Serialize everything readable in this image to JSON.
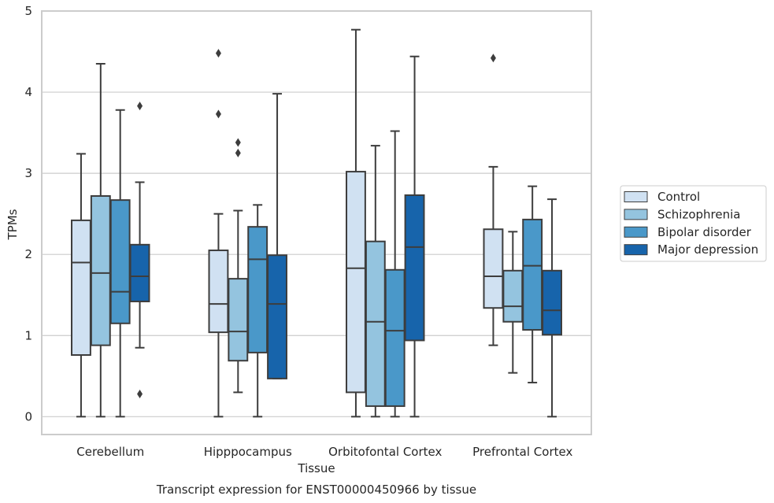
{
  "chart_data": {
    "type": "box",
    "xlabel": "Tissue",
    "ylabel": "TPMs",
    "caption": "Transcript expression for ENST00000450966 by tissue",
    "ylim": [
      -0.22,
      5.0
    ],
    "yticks": [
      "0",
      "1",
      "2",
      "3",
      "4",
      "5"
    ],
    "grid": true,
    "legend_position": "right",
    "categories": [
      "Cerebellum",
      "Hipppocampus",
      "Orbitofontal Cortex",
      "Prefrontal Cortex"
    ],
    "series": [
      {
        "name": "Control",
        "color": "#d0e1f2",
        "boxes": [
          {
            "whislo": 0.0,
            "q1": 0.76,
            "med": 1.9,
            "q3": 2.42,
            "whishi": 3.24,
            "fliers": []
          },
          {
            "whislo": 0.0,
            "q1": 1.04,
            "med": 1.39,
            "q3": 2.05,
            "whishi": 2.5,
            "fliers": [
              4.48,
              3.73
            ]
          },
          {
            "whislo": 0.0,
            "q1": 0.3,
            "med": 1.83,
            "q3": 3.02,
            "whishi": 4.77,
            "fliers": []
          },
          {
            "whislo": 0.88,
            "q1": 1.34,
            "med": 1.73,
            "q3": 2.31,
            "whishi": 3.08,
            "fliers": [
              4.42
            ]
          }
        ]
      },
      {
        "name": "Schizophrenia",
        "color": "#94c4df",
        "boxes": [
          {
            "whislo": 0.0,
            "q1": 0.88,
            "med": 1.77,
            "q3": 2.72,
            "whishi": 4.35,
            "fliers": []
          },
          {
            "whislo": 0.3,
            "q1": 0.69,
            "med": 1.05,
            "q3": 1.7,
            "whishi": 2.54,
            "fliers": [
              3.38,
              3.25
            ]
          },
          {
            "whislo": 0.0,
            "q1": 0.13,
            "med": 1.17,
            "q3": 2.16,
            "whishi": 3.34,
            "fliers": []
          },
          {
            "whislo": 0.54,
            "q1": 1.17,
            "med": 1.36,
            "q3": 1.8,
            "whishi": 2.28,
            "fliers": []
          }
        ]
      },
      {
        "name": "Bipolar disorder",
        "color": "#4a98c9",
        "boxes": [
          {
            "whislo": 0.0,
            "q1": 1.15,
            "med": 1.54,
            "q3": 2.67,
            "whishi": 3.78,
            "fliers": []
          },
          {
            "whislo": 0.0,
            "q1": 0.79,
            "med": 1.94,
            "q3": 2.34,
            "whishi": 2.61,
            "fliers": []
          },
          {
            "whislo": 0.0,
            "q1": 0.13,
            "med": 1.06,
            "q3": 1.81,
            "whishi": 3.52,
            "fliers": []
          },
          {
            "whislo": 0.42,
            "q1": 1.07,
            "med": 1.86,
            "q3": 2.43,
            "whishi": 2.84,
            "fliers": []
          }
        ]
      },
      {
        "name": "Major depression",
        "color": "#1764ab",
        "boxes": [
          {
            "whislo": 0.85,
            "q1": 1.42,
            "med": 1.73,
            "q3": 2.12,
            "whishi": 2.89,
            "fliers": [
              3.83,
              0.28
            ]
          },
          {
            "whislo": 0.47,
            "q1": 0.47,
            "med": 1.39,
            "q3": 1.99,
            "whishi": 3.98,
            "fliers": []
          },
          {
            "whislo": 0.0,
            "q1": 0.94,
            "med": 2.09,
            "q3": 2.73,
            "whishi": 4.44,
            "fliers": []
          },
          {
            "whislo": 0.0,
            "q1": 1.01,
            "med": 1.31,
            "q3": 1.8,
            "whishi": 2.68,
            "fliers": []
          }
        ]
      }
    ]
  }
}
